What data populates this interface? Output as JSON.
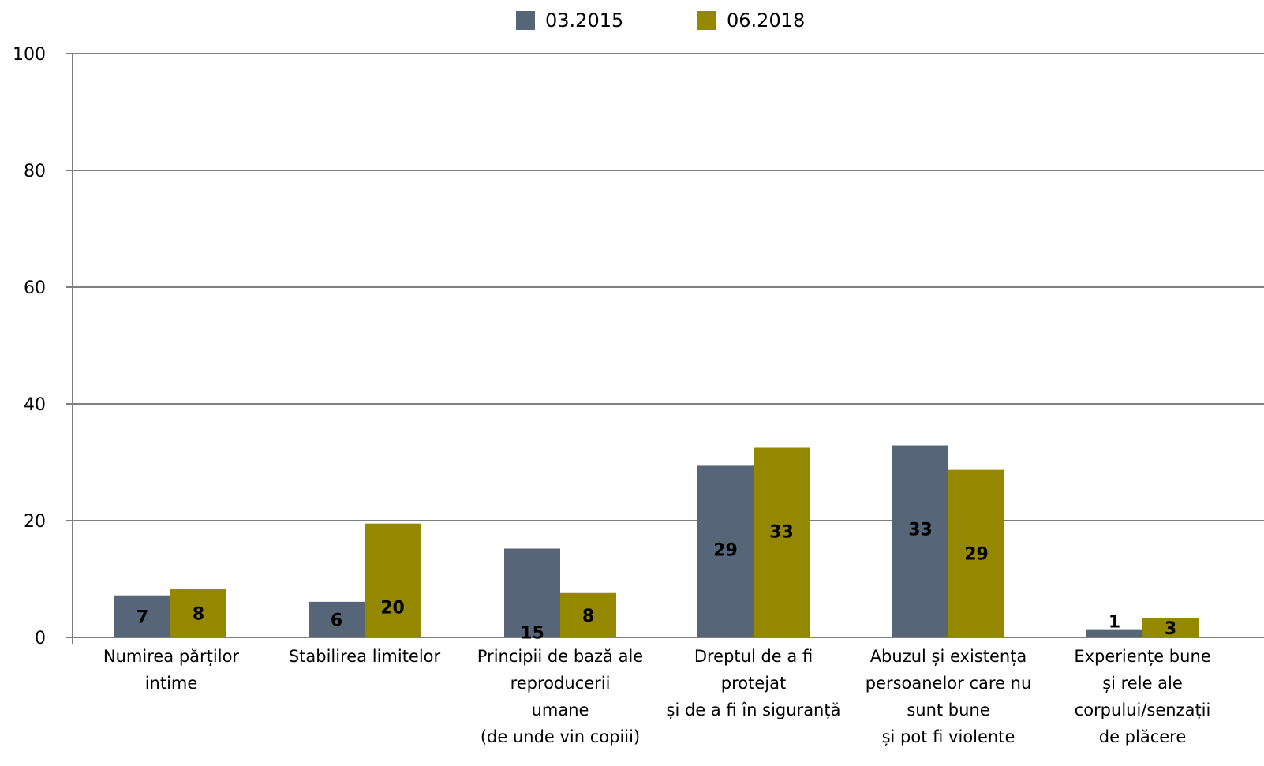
{
  "chart_data": {
    "type": "bar",
    "title": "",
    "xlabel": "",
    "ylabel": "",
    "ylim": [
      0,
      100
    ],
    "yticks": [
      0,
      20,
      40,
      60,
      80,
      100
    ],
    "grid": true,
    "legend_position": "top-center",
    "categories": [
      [
        "Numirea părților",
        "intime"
      ],
      [
        "Stabilirea limitelor"
      ],
      [
        "Principii de bază ale",
        "reproducerii",
        "umane",
        "(de unde vin copiii)"
      ],
      [
        "Dreptul de a fi",
        "protejat",
        "și de a fi în siguranță"
      ],
      [
        "Abuzul și existența",
        "persoanelor care nu",
        "sunt bune",
        "și pot fi violente"
      ],
      [
        "Experiențe bune",
        "și rele ale",
        "corpului/senzații",
        "de plăcere"
      ]
    ],
    "series": [
      {
        "name": "03.2015",
        "color": "#566577",
        "values": [
          7.2,
          6.1,
          15.2,
          29.4,
          32.9,
          1.4
        ],
        "labels": [
          "7",
          "6",
          "15",
          "29",
          "33",
          "1"
        ]
      },
      {
        "name": "06.2018",
        "color": "#948800",
        "values": [
          8.3,
          19.5,
          7.6,
          32.5,
          28.7,
          3.3
        ],
        "labels": [
          "8",
          "20",
          "8",
          "33",
          "29",
          "3"
        ]
      }
    ]
  }
}
